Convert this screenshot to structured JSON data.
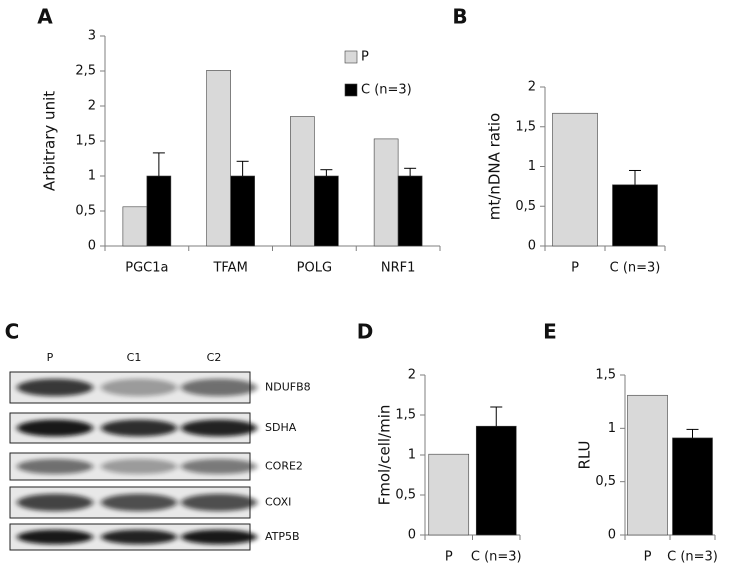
{
  "chart_data": [
    {
      "type": "bar",
      "panel_label": "A",
      "y_label": "Arbitrary unit",
      "categories": [
        "PGC1a",
        "TFAM",
        "POLG",
        "NRF1"
      ],
      "series": [
        {
          "name": "P",
          "color": "#d9d9d9",
          "values": [
            0.56,
            2.51,
            1.85,
            1.53
          ],
          "errors": [
            null,
            null,
            null,
            null
          ]
        },
        {
          "name": "C (n=3)",
          "color": "#000000",
          "values": [
            1,
            1,
            1,
            1
          ],
          "errors": [
            0.33,
            0.21,
            0.09,
            0.11
          ]
        }
      ],
      "ylim": [
        0,
        3
      ],
      "yticks": [
        0,
        {
          "value": 0.5,
          "label": "0,5"
        },
        1,
        {
          "value": 1.5,
          "label": "1,5"
        },
        2,
        {
          "value": 2.5,
          "label": "2,5"
        },
        3
      ]
    },
    {
      "type": "bar",
      "panel_label": "B",
      "y_label": "mt/nDNA ratio",
      "categories": [
        "P",
        "C (n=3)"
      ],
      "values": [
        1.67,
        0.77
      ],
      "errors": [
        null,
        0.18
      ],
      "colors": [
        "#d9d9d9",
        "#000000"
      ],
      "ylim": [
        0,
        2
      ],
      "yticks": [
        0,
        {
          "value": 0.5,
          "label": "0,5"
        },
        1,
        {
          "value": 1.5,
          "label": "1,5"
        },
        2
      ]
    },
    {
      "type": "bar",
      "panel_label": "D",
      "y_label": "Fmol/cell/min",
      "categories": [
        "P",
        "C (n=3)"
      ],
      "values": [
        1.01,
        1.36
      ],
      "errors": [
        null,
        0.24
      ],
      "colors": [
        "#d9d9d9",
        "#000000"
      ],
      "ylim": [
        0,
        2
      ],
      "yticks": [
        0,
        {
          "value": 0.5,
          "label": "0,5"
        },
        1,
        {
          "value": 1.5,
          "label": "1,5"
        },
        2
      ]
    },
    {
      "type": "bar",
      "panel_label": "E",
      "y_label": "RLU",
      "categories": [
        "P",
        "C (n=3)"
      ],
      "values": [
        1.31,
        0.91
      ],
      "errors": [
        null,
        0.08
      ],
      "colors": [
        "#d9d9d9",
        "#000000"
      ],
      "ylim": [
        0,
        1.5
      ],
      "yticks": [
        0,
        {
          "value": 0.5,
          "label": "0,5"
        },
        1,
        {
          "value": 1.5,
          "label": "1,5"
        }
      ]
    }
  ],
  "blot": {
    "panel_label": "C",
    "lanes": [
      "P",
      "C1",
      "C2"
    ],
    "proteins": [
      "NDUFB8",
      "SDHA",
      "CORE2",
      "COXI",
      "ATP5B"
    ]
  }
}
